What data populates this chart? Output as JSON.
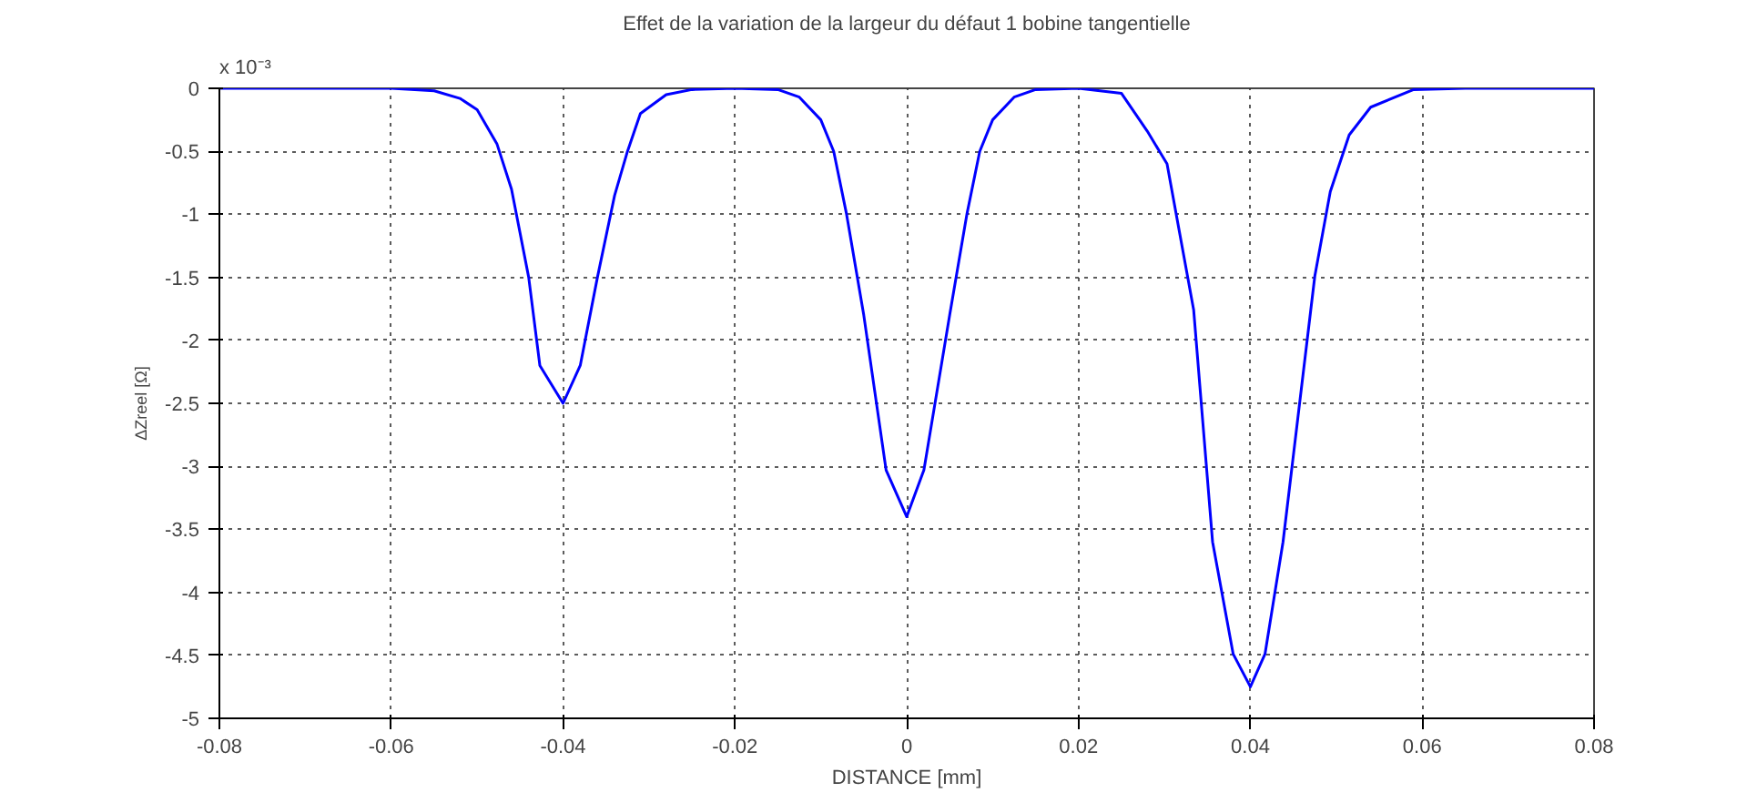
{
  "chart_data": {
    "type": "line",
    "title": "Effet de la variation de la largeur du défaut 1 bobine tangentielle",
    "xlabel": "DISTANCE [mm]",
    "ylabel": "ΔZreel [Ω]",
    "annotations": [
      "x 10⁻³"
    ],
    "x": [
      -0.08,
      -0.07,
      -0.06,
      -0.055,
      -0.052,
      -0.05,
      -0.0477,
      -0.046,
      -0.044,
      -0.0427,
      -0.04,
      -0.038,
      -0.036,
      -0.034,
      -0.0325,
      -0.031,
      -0.028,
      -0.025,
      -0.02,
      -0.015,
      -0.0125,
      -0.01,
      -0.0085,
      -0.007,
      -0.005,
      -0.0024,
      0,
      0.002,
      0.005,
      0.007,
      0.0085,
      0.01,
      0.0125,
      0.015,
      0.02,
      0.025,
      0.028,
      0.0303,
      0.0334,
      0.0356,
      0.038,
      0.04,
      0.0417,
      0.0438,
      0.0475,
      0.0493,
      0.0515,
      0.054,
      0.059,
      0.065,
      0.07,
      0.08
    ],
    "series": [
      {
        "color": "#0000ff",
        "values": [
          0,
          0,
          0,
          -0.02,
          -0.08,
          -0.17,
          -0.44,
          -0.8,
          -1.5,
          -2.2,
          -2.5,
          -2.2,
          -1.5,
          -0.85,
          -0.5,
          -0.2,
          -0.05,
          -0.01,
          0,
          -0.01,
          -0.07,
          -0.25,
          -0.5,
          -1.0,
          -1.8,
          -3.03,
          -3.4,
          -3.03,
          -1.8,
          -1.0,
          -0.5,
          -0.25,
          -0.07,
          -0.01,
          0,
          -0.04,
          -0.34,
          -0.6,
          -1.76,
          -3.6,
          -4.49,
          -4.75,
          -4.49,
          -3.6,
          -1.49,
          -0.82,
          -0.37,
          -0.15,
          -0.01,
          0,
          0,
          0
        ]
      }
    ],
    "xlim": [
      -0.08,
      0.08
    ],
    "ylim": [
      -5,
      0
    ],
    "xticks": [
      -0.08,
      -0.06,
      -0.04,
      -0.02,
      0,
      0.02,
      0.04,
      0.06,
      0.08
    ],
    "yticks": [
      -5,
      -4.5,
      -4,
      -3.5,
      -3,
      -2.5,
      -2,
      -1.5,
      -1,
      -0.5,
      0
    ],
    "grid": true,
    "line_style": "solid",
    "marker": "none"
  }
}
